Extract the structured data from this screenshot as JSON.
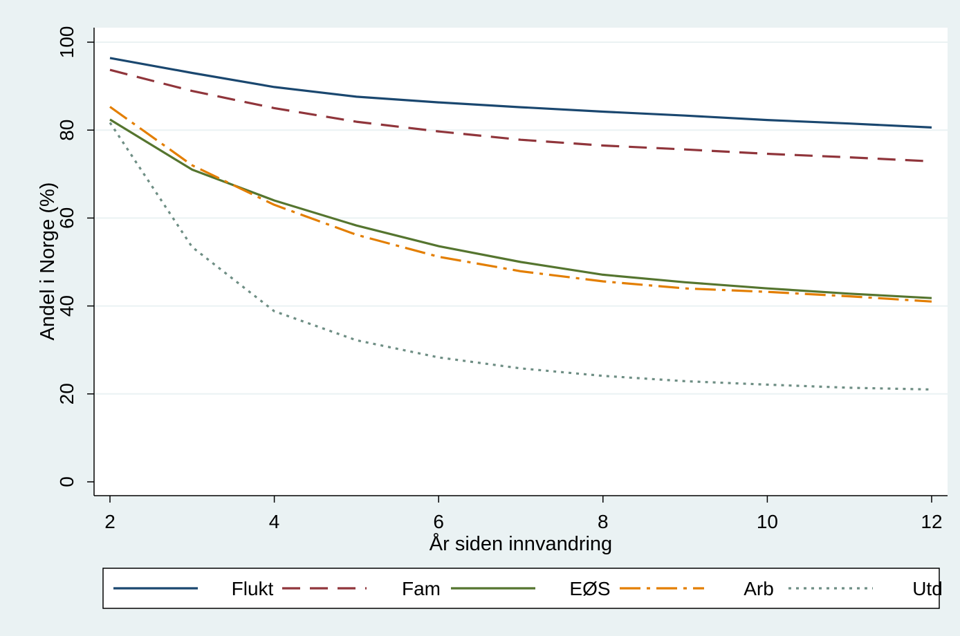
{
  "chart_data": {
    "type": "line",
    "title": "",
    "xlabel": "År siden innvandring",
    "ylabel": "Andel i Norge (%)",
    "xlim": [
      2,
      12
    ],
    "ylim": [
      0,
      100
    ],
    "x_ticks": [
      "2",
      "4",
      "6",
      "8",
      "10",
      "12"
    ],
    "y_ticks": [
      "0",
      "20",
      "40",
      "60",
      "80",
      "100"
    ],
    "grid": "horizontal",
    "legend_position": "bottom",
    "x": [
      2,
      3,
      4,
      5,
      6,
      7,
      8,
      9,
      10,
      11,
      12
    ],
    "series": [
      {
        "name": "Flukt",
        "color": "#1a476f",
        "dash": "solid",
        "values": [
          96.4,
          93.0,
          89.8,
          87.6,
          86.3,
          85.2,
          84.2,
          83.3,
          82.3,
          81.5,
          80.6
        ]
      },
      {
        "name": "Fam",
        "color": "#90353b",
        "dash": "dash",
        "values": [
          93.7,
          88.9,
          85.0,
          81.9,
          79.7,
          77.8,
          76.5,
          75.6,
          74.6,
          73.8,
          72.9
        ]
      },
      {
        "name": "EØS",
        "color": "#55752f",
        "dash": "solid",
        "values": [
          82.4,
          71.0,
          64.0,
          58.3,
          53.6,
          50.0,
          47.1,
          45.4,
          44.0,
          42.8,
          41.8
        ]
      },
      {
        "name": "Arb",
        "color": "#e37e00",
        "dash": "longdashdot",
        "values": [
          85.3,
          72.0,
          63.0,
          56.2,
          51.2,
          47.9,
          45.6,
          44.0,
          43.2,
          42.2,
          41.0
        ]
      },
      {
        "name": "Utd",
        "color": "#6e8e84",
        "dash": "dot",
        "values": [
          81.7,
          53.4,
          38.8,
          32.2,
          28.3,
          25.8,
          24.1,
          22.9,
          22.1,
          21.4,
          21.0
        ]
      }
    ]
  }
}
